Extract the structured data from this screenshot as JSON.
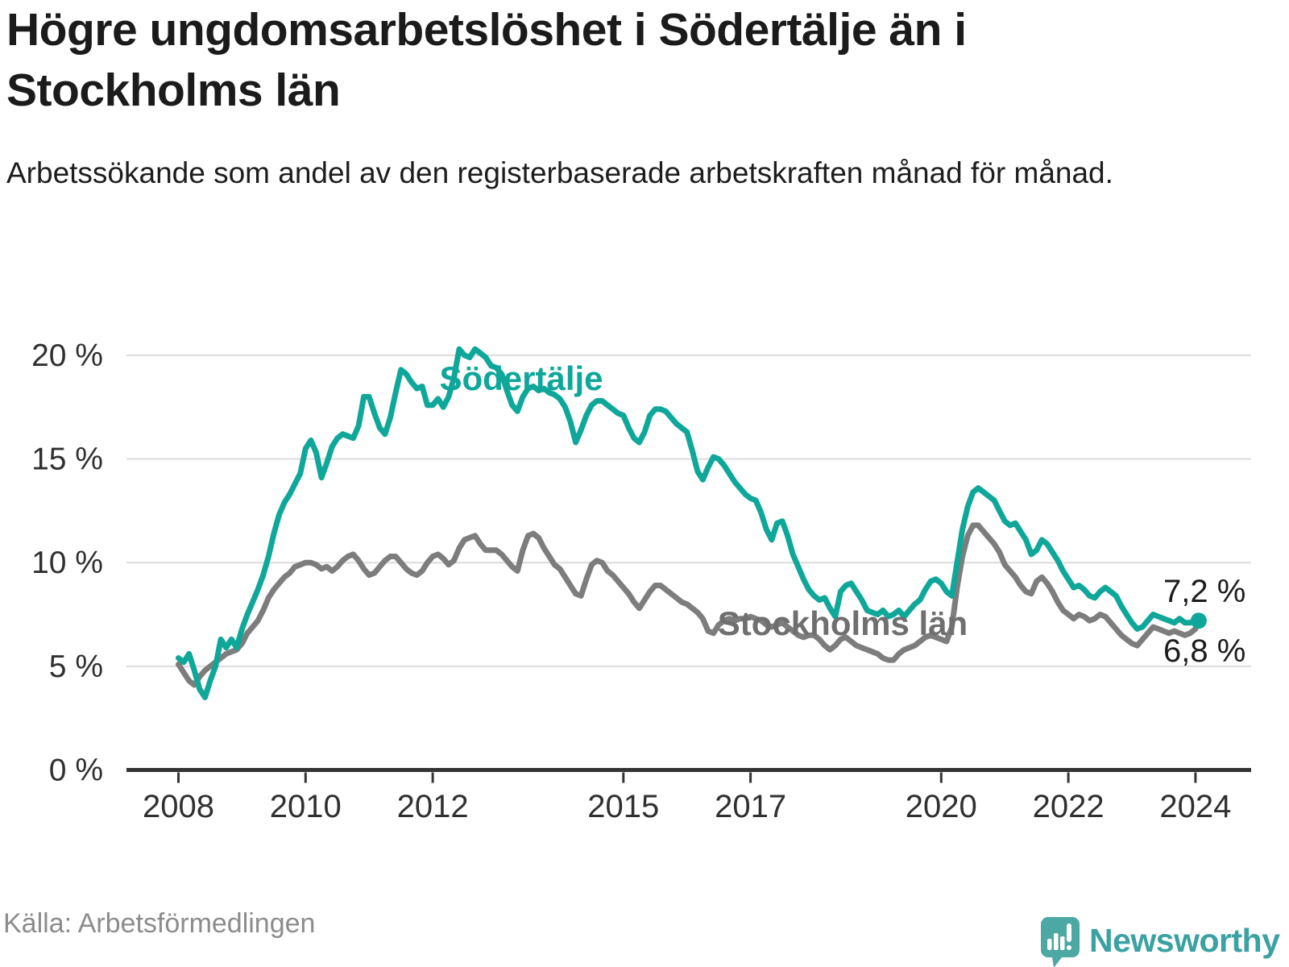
{
  "chart_data": {
    "type": "line",
    "title": "Högre ungdomsarbetslöshet i Södertälje än i Stockholms län",
    "subtitle": "Arbetssökande som andel av den registerbaserade arbetskraften månad för månad.",
    "frequency": "monthly",
    "x_start": "2008-01",
    "x_end": "2024-01",
    "x_tick_labels": [
      "2008",
      "2010",
      "2012",
      "2015",
      "2017",
      "2020",
      "2022",
      "2024"
    ],
    "y_tick_values": [
      0,
      5,
      10,
      15,
      20
    ],
    "y_tick_labels": [
      "0 %",
      "5 %",
      "10 %",
      "15 %",
      "20 %"
    ],
    "ylim": [
      0,
      20.6
    ],
    "grid": true,
    "legend_position": "inline-labels",
    "series": [
      {
        "name": "Stockholms län",
        "color": "#7d7d7d",
        "label_color": "#6f6f6f",
        "end_label": "6,8 %",
        "end_value": 6.8,
        "values": [
          5.1,
          4.7,
          4.3,
          4.1,
          4.5,
          4.8,
          5.0,
          5.2,
          5.4,
          5.6,
          5.7,
          5.8,
          6.1,
          6.6,
          6.9,
          7.2,
          7.7,
          8.3,
          8.7,
          9.0,
          9.3,
          9.5,
          9.8,
          9.9,
          10.0,
          10.0,
          9.9,
          9.7,
          9.8,
          9.6,
          9.8,
          10.1,
          10.3,
          10.4,
          10.1,
          9.7,
          9.4,
          9.5,
          9.8,
          10.1,
          10.3,
          10.3,
          10.0,
          9.7,
          9.5,
          9.4,
          9.6,
          10.0,
          10.3,
          10.4,
          10.2,
          9.9,
          10.1,
          10.7,
          11.1,
          11.2,
          11.3,
          10.9,
          10.6,
          10.6,
          10.6,
          10.4,
          10.1,
          9.8,
          9.6,
          10.6,
          11.3,
          11.4,
          11.2,
          10.7,
          10.3,
          9.9,
          9.7,
          9.3,
          8.9,
          8.5,
          8.4,
          9.2,
          9.9,
          10.1,
          10.0,
          9.6,
          9.4,
          9.1,
          8.8,
          8.5,
          8.1,
          7.8,
          8.2,
          8.6,
          8.9,
          8.9,
          8.7,
          8.5,
          8.3,
          8.1,
          8.0,
          7.8,
          7.6,
          7.3,
          6.7,
          6.6,
          7.0,
          7.2,
          7.3,
          7.2,
          7.3,
          7.3,
          7.4,
          7.3,
          7.2,
          7.0,
          6.9,
          7.0,
          7.1,
          6.9,
          6.7,
          6.5,
          6.4,
          6.5,
          6.5,
          6.3,
          6.0,
          5.8,
          6.0,
          6.3,
          6.4,
          6.2,
          6.0,
          5.9,
          5.8,
          5.7,
          5.6,
          5.4,
          5.3,
          5.3,
          5.6,
          5.8,
          5.9,
          6.0,
          6.2,
          6.4,
          6.5,
          6.4,
          6.3,
          6.2,
          6.9,
          8.8,
          10.3,
          11.3,
          11.8,
          11.8,
          11.5,
          11.2,
          10.9,
          10.5,
          9.9,
          9.6,
          9.3,
          8.9,
          8.6,
          8.5,
          9.1,
          9.3,
          9.0,
          8.6,
          8.1,
          7.7,
          7.5,
          7.3,
          7.5,
          7.4,
          7.2,
          7.3,
          7.5,
          7.4,
          7.1,
          6.8,
          6.5,
          6.3,
          6.1,
          6.0,
          6.3,
          6.6,
          6.9,
          6.8,
          6.7,
          6.6,
          6.7,
          6.6,
          6.5,
          6.6,
          6.8
        ]
      },
      {
        "name": "Södertälje",
        "color": "#0ea79a",
        "label_color": "#0ea79a",
        "end_label": "7,2 %",
        "end_value": 7.2,
        "end_dot": true,
        "values": [
          5.4,
          5.2,
          5.6,
          4.8,
          3.9,
          3.5,
          4.3,
          5.0,
          6.3,
          5.9,
          6.3,
          5.9,
          6.8,
          7.5,
          8.1,
          8.7,
          9.4,
          10.3,
          11.4,
          12.3,
          12.9,
          13.3,
          13.8,
          14.3,
          15.5,
          15.9,
          15.3,
          14.1,
          14.8,
          15.6,
          16.0,
          16.2,
          16.1,
          16.0,
          16.6,
          18.0,
          18.0,
          17.2,
          16.5,
          16.2,
          17.0,
          18.2,
          19.3,
          19.1,
          18.7,
          18.4,
          18.5,
          17.6,
          17.6,
          17.9,
          17.5,
          18.0,
          18.9,
          20.3,
          20.0,
          19.9,
          20.3,
          20.1,
          19.9,
          19.5,
          19.4,
          19.1,
          18.3,
          17.6,
          17.3,
          18.0,
          18.4,
          18.5,
          18.3,
          18.4,
          18.2,
          18.1,
          17.9,
          17.5,
          16.8,
          15.8,
          16.4,
          17.1,
          17.6,
          17.8,
          17.8,
          17.6,
          17.4,
          17.2,
          17.1,
          16.5,
          16.0,
          15.8,
          16.3,
          17.1,
          17.4,
          17.4,
          17.3,
          17.0,
          16.7,
          16.5,
          16.3,
          15.4,
          14.4,
          14.0,
          14.6,
          15.1,
          15.0,
          14.7,
          14.3,
          13.9,
          13.6,
          13.3,
          13.1,
          13.0,
          12.4,
          11.6,
          11.1,
          11.9,
          12.0,
          11.3,
          10.4,
          9.8,
          9.2,
          8.7,
          8.4,
          8.2,
          8.3,
          7.8,
          7.4,
          8.6,
          8.9,
          9.0,
          8.6,
          8.2,
          7.7,
          7.6,
          7.5,
          7.7,
          7.4,
          7.5,
          7.7,
          7.4,
          7.7,
          8.0,
          8.2,
          8.7,
          9.1,
          9.2,
          9.0,
          8.6,
          8.4,
          10.0,
          11.6,
          12.7,
          13.4,
          13.6,
          13.4,
          13.2,
          13.0,
          12.5,
          12.0,
          11.8,
          11.9,
          11.5,
          11.1,
          10.4,
          10.6,
          11.1,
          10.9,
          10.5,
          10.1,
          9.6,
          9.2,
          8.8,
          8.9,
          8.7,
          8.4,
          8.3,
          8.6,
          8.8,
          8.6,
          8.4,
          7.9,
          7.5,
          7.1,
          6.8,
          6.9,
          7.2,
          7.5,
          7.4,
          7.3,
          7.2,
          7.1,
          7.3,
          7.1,
          7.1,
          7.2
        ]
      }
    ]
  },
  "footer": {
    "source": "Källa: Arbetsförmedlingen",
    "brand": "Newsworthy"
  }
}
